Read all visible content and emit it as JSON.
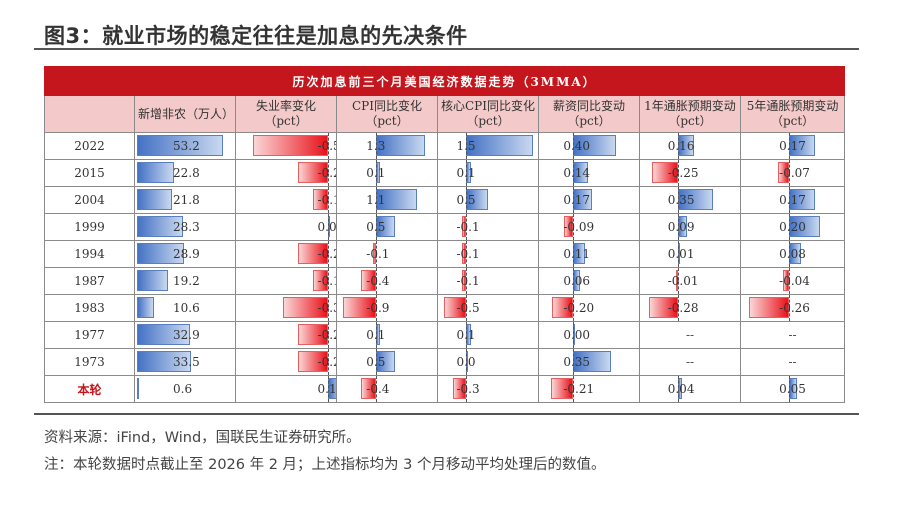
{
  "title": "图3：就业市场的稳定往往是加息的先决条件",
  "table": {
    "banner": "历次加息前三个月美国经济数据走势（3MMA）",
    "columns": [
      {
        "label": "新增非农（万人）",
        "min": 0,
        "max": 60,
        "origin": 0
      },
      {
        "label": "失业率变化（pct）",
        "min": -0.6,
        "max": 0.05,
        "origin": 0
      },
      {
        "label": "CPI同比变化（pct）",
        "min": -1.0,
        "max": 1.6,
        "origin": 0
      },
      {
        "label": "核心CPI同比变化（pct）",
        "min": -0.6,
        "max": 1.6,
        "origin": 0
      },
      {
        "label": "薪资同比变动（pct）",
        "min": -0.3,
        "max": 0.6,
        "origin": 0
      },
      {
        "label": "1年通胀预期变动（pct）",
        "min": -0.35,
        "max": 0.6,
        "origin": 0
      },
      {
        "label": "5年通胀预期变动（pct）",
        "min": -0.3,
        "max": 0.35,
        "origin": 0
      }
    ],
    "rows": [
      {
        "label": "2022",
        "current": false,
        "cells": [
          "53.2",
          "-0.5",
          "1.3",
          "1.5",
          "0.40",
          "0.16",
          "0.17"
        ]
      },
      {
        "label": "2015",
        "current": false,
        "cells": [
          "22.8",
          "-0.2",
          "0.1",
          "0.1",
          "0.14",
          "-0.25",
          "-0.07"
        ]
      },
      {
        "label": "2004",
        "current": false,
        "cells": [
          "21.8",
          "-0.1",
          "1.1",
          "0.5",
          "0.17",
          "0.35",
          "0.17"
        ]
      },
      {
        "label": "1999",
        "current": false,
        "cells": [
          "28.3",
          "0.0",
          "0.5",
          "-0.1",
          "-0.09",
          "0.09",
          "0.20"
        ]
      },
      {
        "label": "1994",
        "current": false,
        "cells": [
          "28.9",
          "-0.2",
          "-0.1",
          "-0.1",
          "0.11",
          "0.01",
          "0.08"
        ]
      },
      {
        "label": "1987",
        "current": false,
        "cells": [
          "19.2",
          "-0.1",
          "-0.4",
          "-0.1",
          "0.06",
          "-0.01",
          "-0.04"
        ]
      },
      {
        "label": "1983",
        "current": false,
        "cells": [
          "10.6",
          "-0.3",
          "-0.9",
          "-0.5",
          "-0.20",
          "-0.28",
          "-0.26"
        ]
      },
      {
        "label": "1977",
        "current": false,
        "cells": [
          "32.9",
          "-0.2",
          "0.1",
          "0.1",
          "0.00",
          "--",
          "--"
        ]
      },
      {
        "label": "1973",
        "current": false,
        "cells": [
          "33.5",
          "-0.2",
          "0.5",
          "0.0",
          "0.35",
          "--",
          "--"
        ]
      },
      {
        "label": "本轮",
        "current": true,
        "cells": [
          "0.6",
          "0.1",
          "-0.4",
          "-0.3",
          "-0.21",
          "0.04",
          "0.05"
        ]
      }
    ]
  },
  "source_note": "资料来源：iFind，Wind，国联民生证券研究所。",
  "footnote": "注：本轮数据时点截止至 2026 年 2 月；上述指标均为 3 个月移动平均处理后的数值。",
  "colors": {
    "positive_bar": "#4472c4",
    "negative_bar": "#e8121b",
    "banner": "#c4161c",
    "header_bg": "#f4c9c9"
  }
}
